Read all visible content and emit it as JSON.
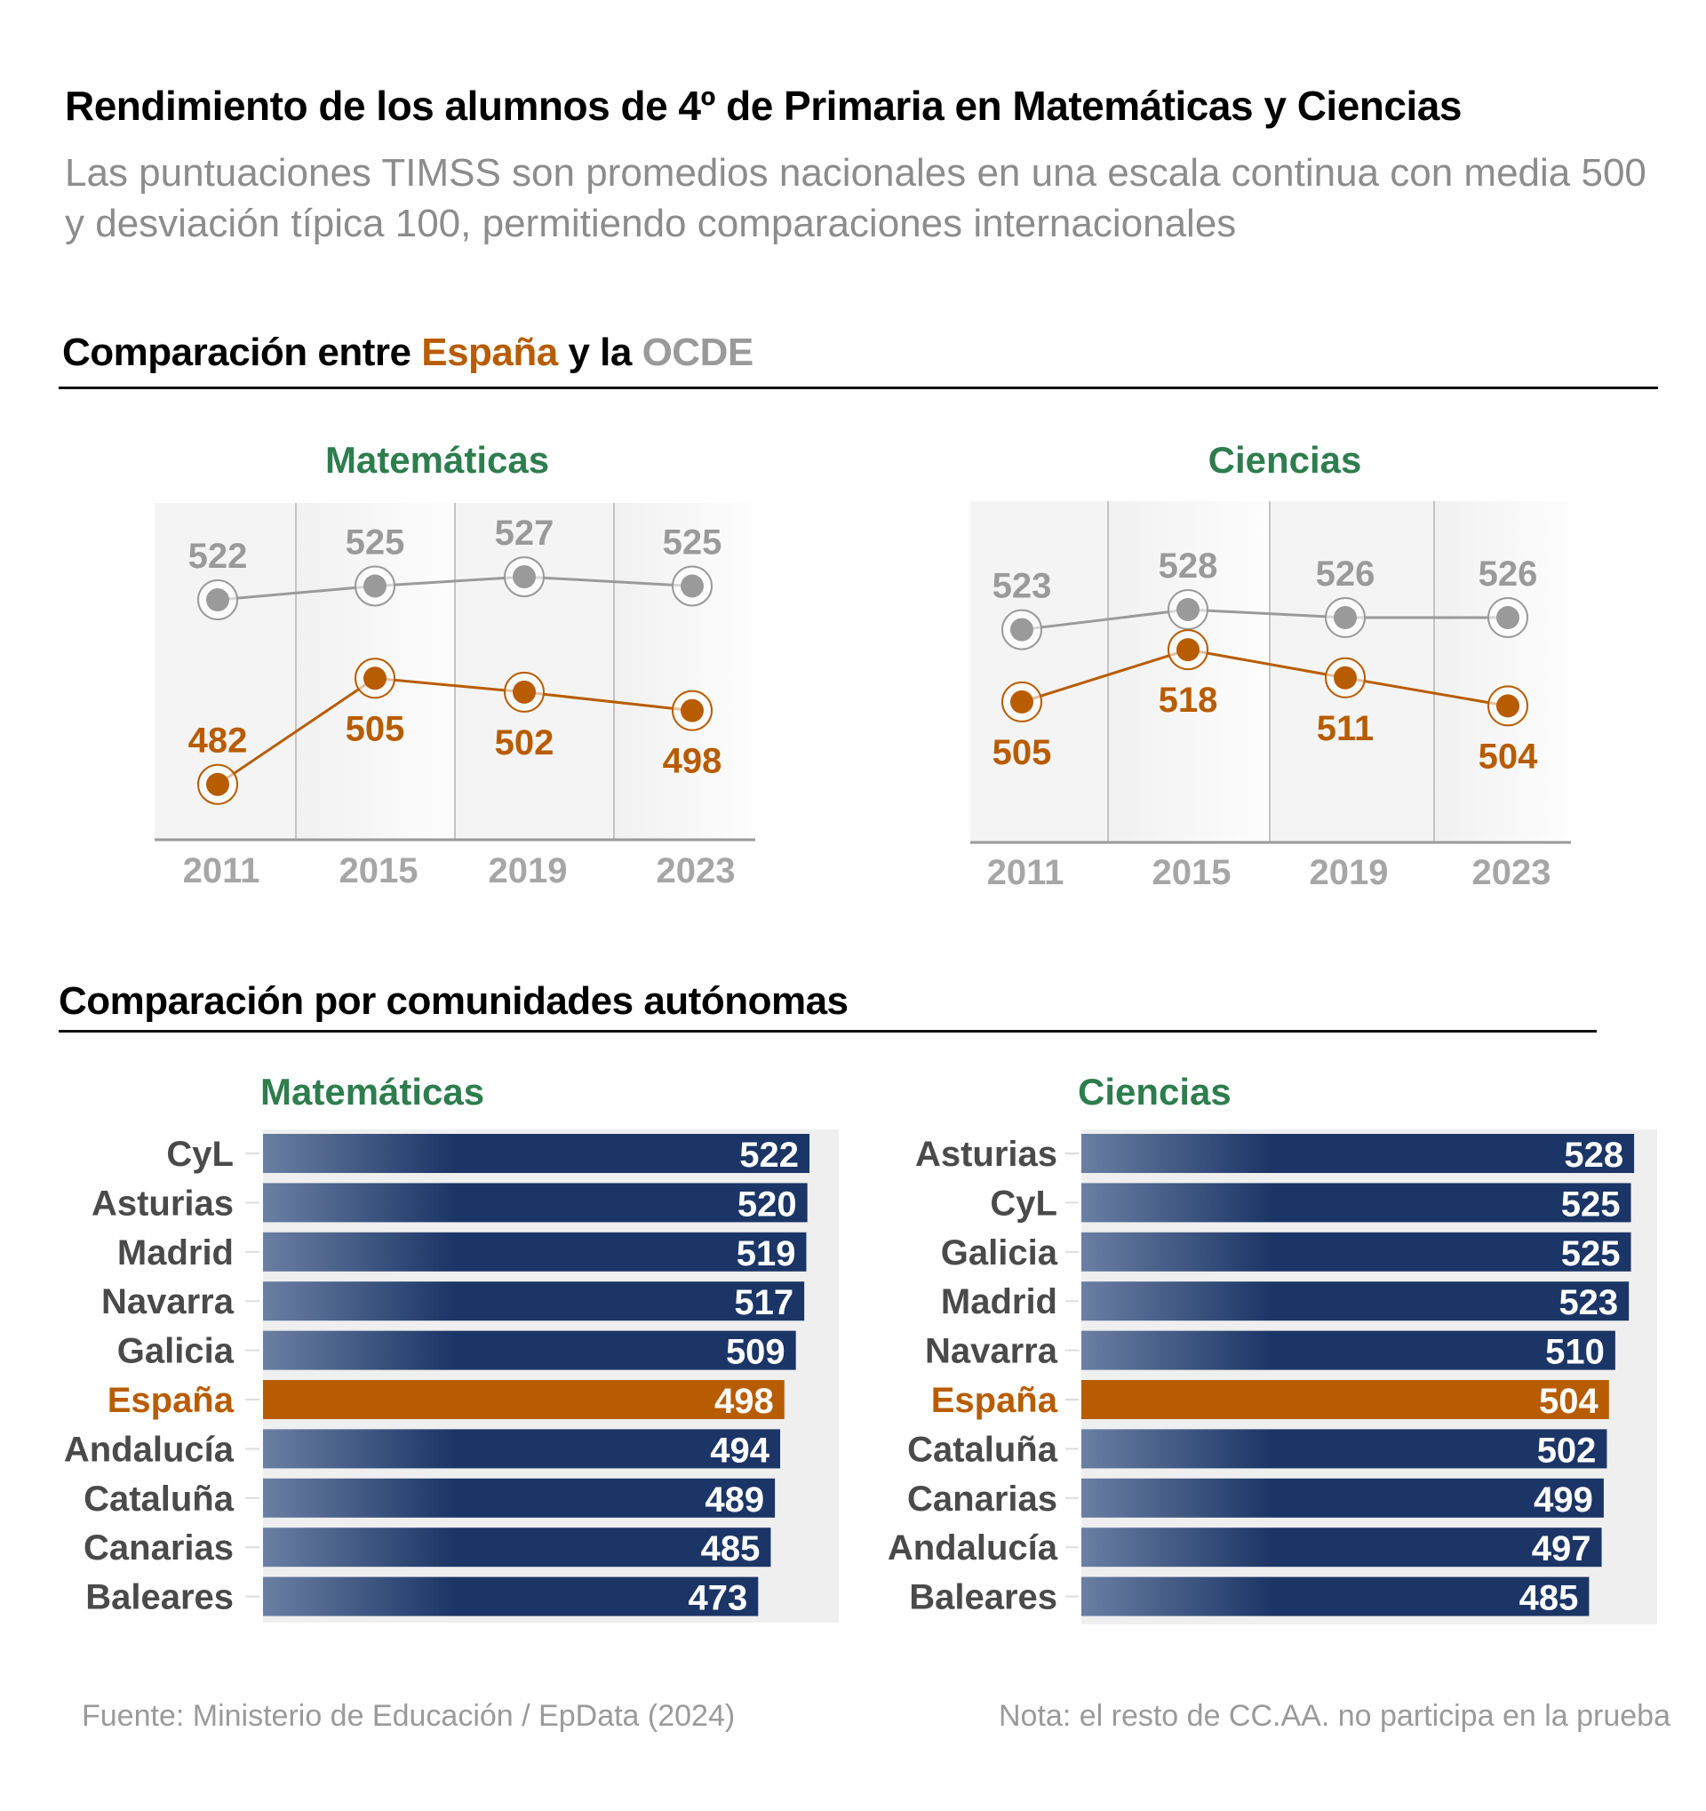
{
  "header": {
    "title": "Rendimiento de los alumnos de 4º de Primaria en Matemáticas y Ciencias",
    "subtitle": "Las puntuaciones TIMSS son promedios nacionales en una escala continua con media 500 y desviación típica 100, permitiendo comparaciones internacionales"
  },
  "section1": {
    "prefix": "Comparación entre ",
    "spain": "España",
    "middle": " y la ",
    "oecd": "OCDE"
  },
  "section2": {
    "title": "Comparación por comunidades autónomas"
  },
  "colors": {
    "spain": "#b85c00",
    "oecd": "#9a9a9a",
    "subject_title": "#2e7d4e",
    "bar_navy": "#1b3566",
    "bar_gradient_start": "#6a7fa3",
    "panel_bg": "#efefef",
    "label_gray": "#4a4a4a"
  },
  "chart_data": [
    {
      "type": "line",
      "title": "Matemáticas",
      "x": [
        "2011",
        "2015",
        "2019",
        "2023"
      ],
      "series": [
        {
          "name": "OCDE",
          "values": [
            522,
            525,
            527,
            525
          ]
        },
        {
          "name": "España",
          "values": [
            482,
            505,
            502,
            498
          ]
        }
      ],
      "ylim": [
        470,
        543
      ],
      "grid": "vertical",
      "xlabel": "",
      "ylabel": ""
    },
    {
      "type": "line",
      "title": "Ciencias",
      "x": [
        "2011",
        "2015",
        "2019",
        "2023"
      ],
      "series": [
        {
          "name": "OCDE",
          "values": [
            523,
            528,
            526,
            526
          ]
        },
        {
          "name": "España",
          "values": [
            505,
            518,
            511,
            504
          ]
        }
      ],
      "ylim": [
        470,
        555
      ],
      "grid": "vertical",
      "xlabel": "",
      "ylabel": ""
    },
    {
      "type": "bar",
      "orientation": "horizontal",
      "title": "Matemáticas",
      "categories": [
        "CyL",
        "Asturias",
        "Madrid",
        "Navarra",
        "Galicia",
        "España",
        "Andalucía",
        "Cataluña",
        "Canarias",
        "Baleares"
      ],
      "values": [
        522,
        520,
        519,
        517,
        509,
        498,
        494,
        489,
        485,
        473
      ],
      "highlight": "España",
      "xlim": [
        0,
        550
      ]
    },
    {
      "type": "bar",
      "orientation": "horizontal",
      "title": "Ciencias",
      "categories": [
        "Asturias",
        "CyL",
        "Galicia",
        "Madrid",
        "Navarra",
        "España",
        "Cataluña",
        "Canarias",
        "Andalucía",
        "Baleares"
      ],
      "values": [
        528,
        525,
        525,
        523,
        510,
        504,
        502,
        499,
        497,
        485
      ],
      "highlight": "España",
      "xlim": [
        0,
        550
      ]
    }
  ],
  "footer": {
    "source": "Fuente: Ministerio de Educación / EpData (2024)",
    "note": "Nota: el resto de CC.AA. no participa en la prueba"
  }
}
